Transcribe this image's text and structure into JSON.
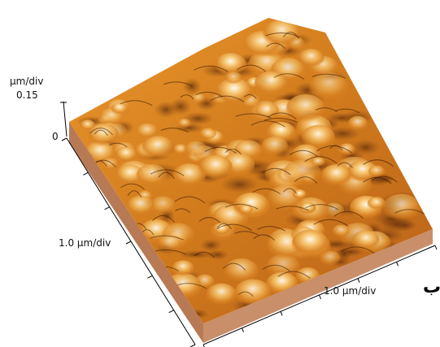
{
  "axis": {
    "z_unit": "µm/div",
    "z_max": "0.15",
    "z_min": "0",
    "y_label": "1.0 µm/div",
    "x_label": "1.0 µm/div"
  },
  "caption": "ب"
}
